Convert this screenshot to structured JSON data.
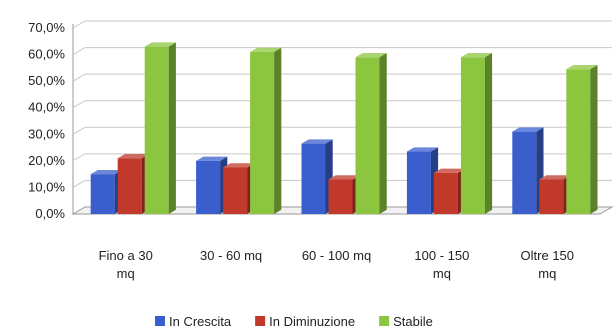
{
  "chart_data": {
    "type": "bar",
    "title": "",
    "xlabel": "",
    "ylabel": "",
    "categories": [
      [
        "Fino a 30",
        "mq"
      ],
      [
        "30 - 60 mq"
      ],
      [
        "60 - 100 mq"
      ],
      [
        "100 - 150",
        "mq"
      ],
      [
        "Oltre 150",
        "mq"
      ]
    ],
    "series": [
      {
        "name": "In Crescita",
        "values": [
          15.0,
          20.0,
          26.5,
          23.5,
          31.0
        ],
        "color": "#3a5fcd"
      },
      {
        "name": "In Diminuzione",
        "values": [
          21.0,
          17.5,
          13.0,
          15.5,
          13.0
        ],
        "color": "#c0392b"
      },
      {
        "name": "Stabile",
        "values": [
          63.0,
          61.0,
          59.0,
          59.0,
          54.5
        ],
        "color": "#8cc63f"
      }
    ],
    "yticks": [
      "0,0%",
      "10,0%",
      "20,0%",
      "30,0%",
      "40,0%",
      "50,0%",
      "60,0%",
      "70,0%"
    ],
    "ylim": [
      0,
      70
    ],
    "grid": true,
    "legend_position": "bottom"
  }
}
